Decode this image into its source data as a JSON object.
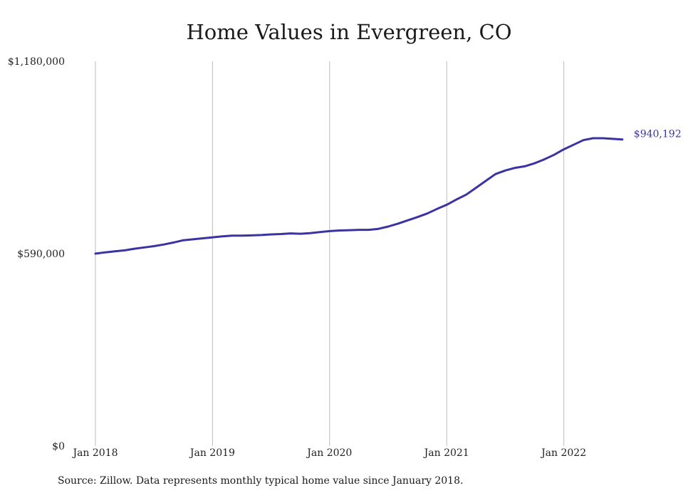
{
  "chart_data": {
    "type": "line",
    "title": "Home Values in Evergreen, CO",
    "source": "Source: Zillow. Data represents monthly typical home value since January 2018.",
    "xlabel": "",
    "ylabel": "",
    "y_ticks": [
      "$0",
      "$590,000",
      "$1,180,000"
    ],
    "y_tick_values": [
      0,
      590000,
      1180000
    ],
    "ylim": [
      0,
      1180000
    ],
    "x_ticks": [
      "Jan 2018",
      "Jan 2019",
      "Jan 2020",
      "Jan 2021",
      "Jan 2022"
    ],
    "x_tick_months": [
      0,
      12,
      24,
      36,
      48
    ],
    "vertical_grid": true,
    "line_color": "#3a34a0",
    "end_label": "$940,192",
    "series": [
      {
        "x": [
          "2018-01",
          "2018-02",
          "2018-03",
          "2018-04",
          "2018-05",
          "2018-06",
          "2018-07",
          "2018-08",
          "2018-09",
          "2018-10",
          "2018-11",
          "2018-12",
          "2019-01",
          "2019-02",
          "2019-03",
          "2019-04",
          "2019-05",
          "2019-06",
          "2019-07",
          "2019-08",
          "2019-09",
          "2019-10",
          "2019-11",
          "2019-12",
          "2020-01",
          "2020-02",
          "2020-03",
          "2020-04",
          "2020-05",
          "2020-06",
          "2020-07",
          "2020-08",
          "2020-09",
          "2020-10",
          "2020-11",
          "2020-12",
          "2021-01",
          "2021-02",
          "2021-03",
          "2021-04",
          "2021-05",
          "2021-06",
          "2021-07",
          "2021-08",
          "2021-09",
          "2021-10",
          "2021-11",
          "2021-12",
          "2022-01",
          "2022-02",
          "2022-03",
          "2022-04",
          "2022-05",
          "2022-06",
          "2022-07"
        ],
        "values": [
          590000,
          594000,
          597000,
          600000,
          605000,
          609000,
          613000,
          618000,
          624000,
          631000,
          634000,
          637000,
          640000,
          643000,
          645000,
          645000,
          646000,
          647000,
          649000,
          650000,
          652000,
          651000,
          653000,
          656000,
          659000,
          661000,
          662000,
          663000,
          663000,
          666000,
          673000,
          682000,
          692000,
          702000,
          713000,
          727000,
          740000,
          756000,
          771000,
          792000,
          813000,
          834000,
          845000,
          853000,
          858000,
          867000,
          879000,
          893000,
          910000,
          924000,
          938000,
          944000,
          944000,
          942000,
          940192
        ]
      }
    ]
  }
}
